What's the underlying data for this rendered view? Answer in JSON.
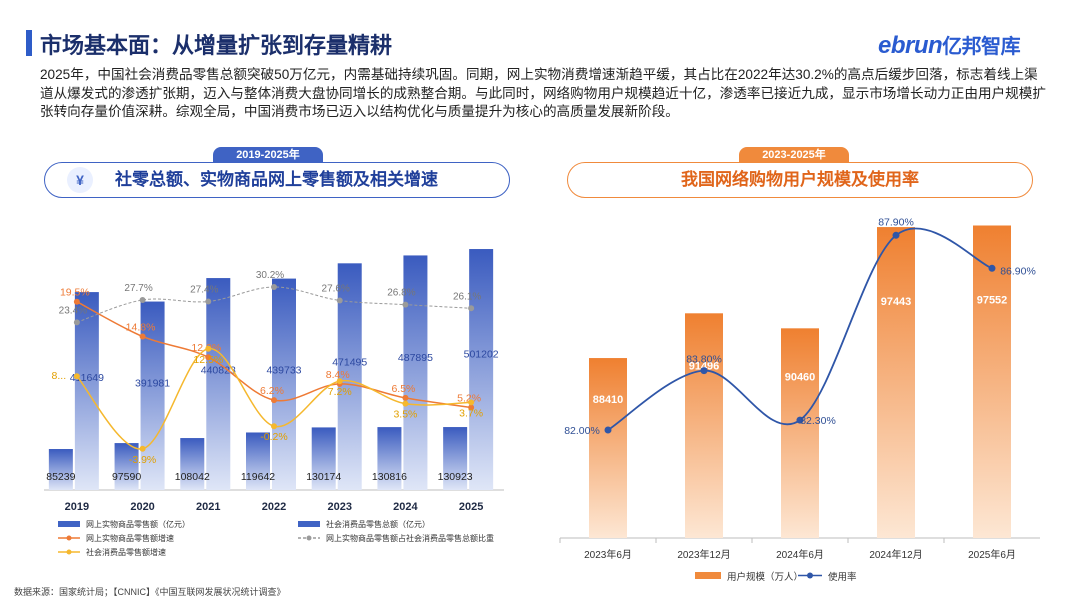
{
  "page": {
    "title": "市场基本面：从增量扩张到存量精耕",
    "logo_latin": "ebrun",
    "logo_cn": "亿邦智库",
    "intro": "2025年，中国社会消费品零售总额突破50万亿元，内需基础持续巩固。同期，网上实物消费增速渐趋平缓，其占比在2022年达30.2%的高点后缓步回落，标志着线上渠道从爆发式的渗透扩张期，迈入与整体消费大盘协同增长的成熟整合期。与此同时，网络购物用户规模趋近十亿，渗透率已接近九成，显示市场增长动力正由用户规模扩张转向存量价值深耕。综观全局，中国消费市场已迈入以结构优化与质量提升为核心的高质量发展新阶段。",
    "source": "数据来源：国家统计局；【CNNIC】《中国互联网发展状况统计调查》",
    "colors": {
      "blue": "#3f63c4",
      "orange": "#f08a3c",
      "gray": "#9a9a9a",
      "yellow": "#f5b82e",
      "rate_line": "#2f56a8"
    }
  },
  "left_panel": {
    "period": "2019-2025年",
    "heading": "社零总额、实物商品网上零售额及相关增速",
    "icon": "money-hand-icon"
  },
  "right_panel": {
    "period": "2023-2025年",
    "heading": "我国网络购物用户规模及使用率"
  },
  "chart_data": [
    {
      "type": "bar",
      "categories": [
        "2019",
        "2020",
        "2021",
        "2022",
        "2023",
        "2024",
        "2025"
      ],
      "series": [
        {
          "name": "网上实物商品零售额（亿元）",
          "kind": "bar",
          "values": [
            85239,
            97590,
            108042,
            119642,
            130174,
            130816,
            130923
          ],
          "labels": [
            "85239",
            "97590",
            "108042",
            "119642",
            "130174",
            "130816",
            "130923"
          ]
        },
        {
          "name": "社会消费品零售总额（亿元）",
          "kind": "bar",
          "values": [
            411649,
            391981,
            440823,
            439733,
            471495,
            487895,
            501202
          ],
          "labels": [
            "411649",
            "391981",
            "440823",
            "439733",
            "471495",
            "487895",
            "501202"
          ]
        },
        {
          "name": "网上实物商品零售额增速",
          "kind": "line",
          "values": [
            19.5,
            14.8,
            12.0,
            6.2,
            8.4,
            6.5,
            5.2
          ],
          "labels": [
            "19.5%",
            "14.8%",
            "12.0%",
            "6.2%",
            "8.4%",
            "6.5%",
            "5.2%"
          ]
        },
        {
          "name": "网上实物商品零售额占社会消费品零售总额比重",
          "kind": "line",
          "values": [
            23.4,
            27.7,
            27.4,
            30.2,
            27.6,
            26.8,
            26.1
          ],
          "labels": [
            "23.4%",
            "27.7%",
            "27.4%",
            "30.2%",
            "27.6%",
            "26.8%",
            "26.1%"
          ]
        },
        {
          "name": "社会消费品零售额增速",
          "kind": "line",
          "values": [
            8.0,
            -3.9,
            12.5,
            -0.2,
            7.2,
            3.5,
            3.7
          ],
          "labels": [
            "8...",
            "-3.9%",
            "12.5%",
            "-0.2%",
            "7.2%",
            "3.5%",
            "3.7%"
          ]
        }
      ],
      "legend_position": "bottom",
      "grid": false
    },
    {
      "type": "bar",
      "categories": [
        "2023年6月",
        "2023年12月",
        "2024年6月",
        "2024年12月",
        "2025年6月"
      ],
      "series": [
        {
          "name": "用户规模（万人）",
          "kind": "bar",
          "values": [
            88410,
            91496,
            90460,
            97443,
            97552
          ],
          "labels": [
            "88410",
            "91496",
            "90460",
            "97443",
            "97552"
          ]
        },
        {
          "name": "使用率",
          "kind": "line",
          "values": [
            82.0,
            83.8,
            82.3,
            87.9,
            86.9
          ],
          "labels": [
            "82.00%",
            "83.80%",
            "82.30%",
            "87.90%",
            "86.90%"
          ]
        }
      ],
      "legend_position": "bottom",
      "grid": false
    }
  ]
}
